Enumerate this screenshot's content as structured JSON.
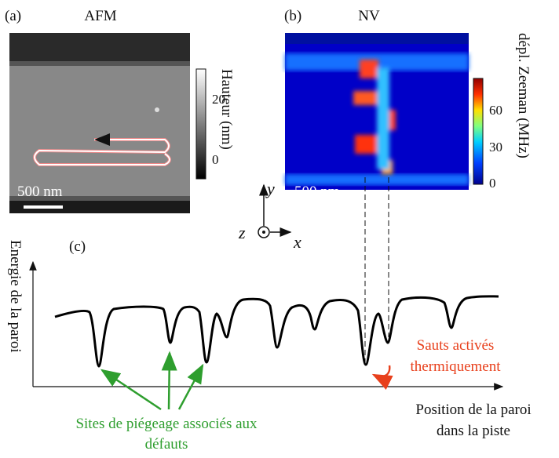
{
  "panel_a": {
    "label": "(a)",
    "title": "AFM",
    "colorbar_title": "Hauteur (nm)",
    "colorbar_ticks": [
      20,
      0
    ],
    "scale_bar": "500 nm"
  },
  "panel_b": {
    "label": "(b)",
    "title": "NV",
    "colorbar_title": "dépl. Zeeman (MHz)",
    "colorbar_ticks": [
      60,
      30,
      0
    ],
    "scale_bar": "500 nm"
  },
  "axes": {
    "y": "y",
    "z": "z",
    "x": "x"
  },
  "panel_c": {
    "label": "(c)",
    "y_label": "Energie de la paroi",
    "x_label": [
      "Position de la paroi",
      "dans la piste"
    ],
    "red_note": [
      "Sauts activés",
      "thermiquement"
    ],
    "green_note": [
      "Sites de piégeage associés aux",
      "défauts"
    ]
  }
}
